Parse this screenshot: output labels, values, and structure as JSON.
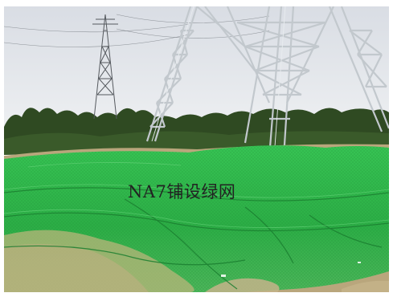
{
  "caption": "NA7铺设绿网",
  "colors": {
    "sky": "#e4e7ec",
    "tree_line": "#2f4a22",
    "net_green": "#2fb84a",
    "net_dark": "#1f8f36",
    "soil": "#b9a67c",
    "tower_far": "#5a5e63",
    "tower_near": "#c9ced2"
  }
}
